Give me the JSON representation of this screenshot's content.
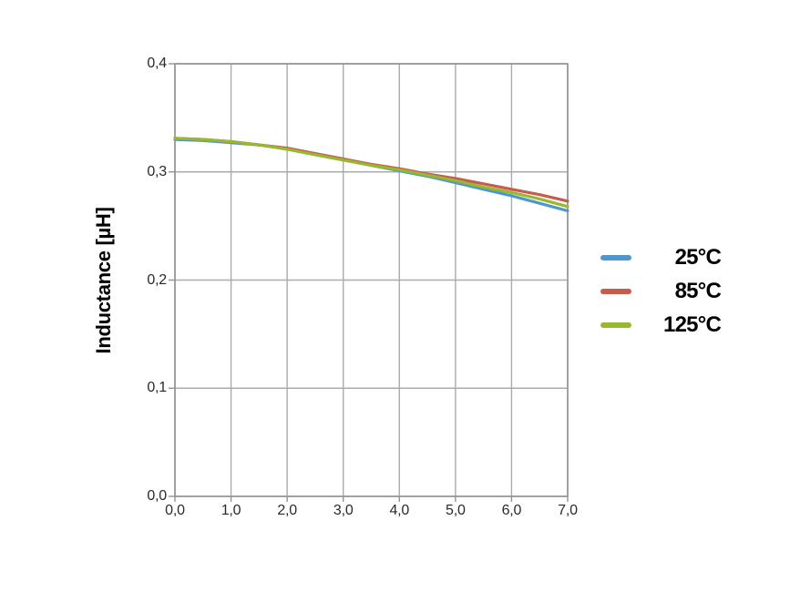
{
  "chart_data": {
    "type": "line",
    "title": "",
    "xlabel": "",
    "ylabel": "Inductance [µH]",
    "xlim": [
      0.0,
      7.0
    ],
    "ylim": [
      0.0,
      0.4
    ],
    "grid": "on",
    "legend_position": "right",
    "grid_color": "#ababab",
    "axis_color": "#949494",
    "x_ticks": [
      0,
      1,
      2,
      3,
      4,
      5,
      6,
      7
    ],
    "x_tick_labels": [
      "0,0",
      "1,0",
      "2,0",
      "3,0",
      "4,0",
      "5,0",
      "6,0",
      "7,0"
    ],
    "y_ticks": [
      0.0,
      0.1,
      0.2,
      0.3,
      0.4
    ],
    "y_tick_labels": [
      "0,0",
      "0,1",
      "0,2",
      "0,3",
      "0,4"
    ],
    "x": [
      0,
      0.5,
      1,
      1.5,
      2,
      2.5,
      3,
      3.5,
      4,
      4.5,
      5,
      5.5,
      6,
      6.5,
      7
    ],
    "series": [
      {
        "name": "25°C",
        "color": "#4e96ce",
        "values": [
          0.33,
          0.329,
          0.327,
          0.325,
          0.321,
          0.316,
          0.311,
          0.306,
          0.301,
          0.296,
          0.29,
          0.284,
          0.278,
          0.271,
          0.264
        ]
      },
      {
        "name": "85°C",
        "color": "#c95b4b",
        "values": [
          0.331,
          0.33,
          0.328,
          0.325,
          0.322,
          0.317,
          0.312,
          0.307,
          0.303,
          0.298,
          0.294,
          0.289,
          0.284,
          0.279,
          0.273
        ]
      },
      {
        "name": "125°C",
        "color": "#97b82f",
        "values": [
          0.331,
          0.33,
          0.328,
          0.325,
          0.321,
          0.316,
          0.311,
          0.306,
          0.302,
          0.297,
          0.292,
          0.286,
          0.281,
          0.275,
          0.268
        ]
      }
    ]
  }
}
